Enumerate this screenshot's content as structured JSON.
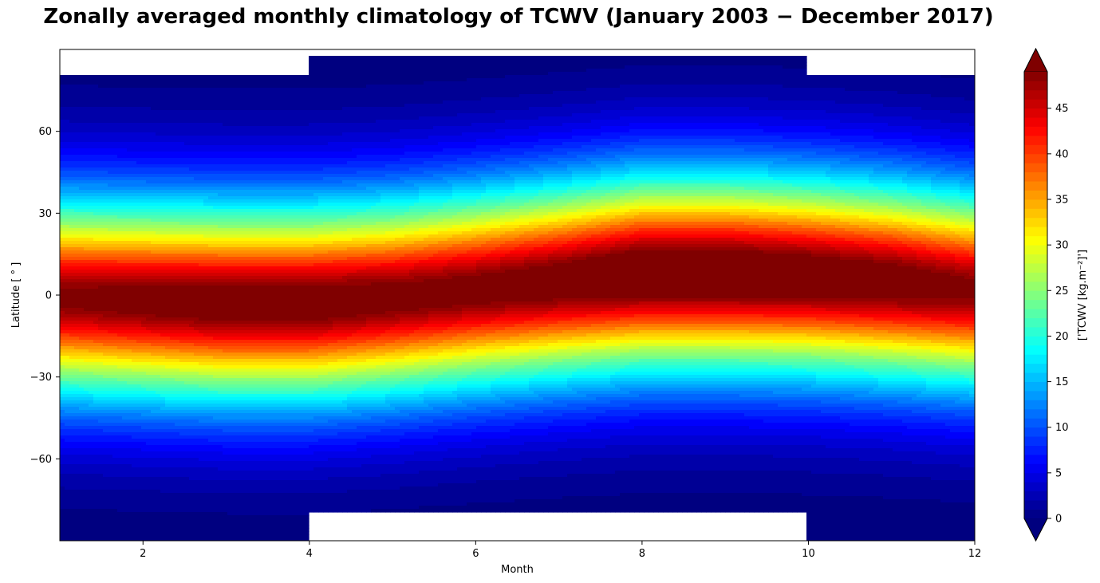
{
  "chart_data": {
    "type": "heatmap",
    "subtype": "filled-contour",
    "title": "Zonally averaged monthly climatology of TCWV (January 2003  −  December 2017)",
    "xlabel": "Month",
    "ylabel": "Latitude [ ° ]",
    "xlim": [
      1,
      12
    ],
    "ylim": [
      -90,
      90
    ],
    "xticks": [
      2,
      4,
      6,
      8,
      10,
      12
    ],
    "yticks": [
      -60,
      -30,
      0,
      30,
      60
    ],
    "ytick_labels": [
      "−60",
      "−30",
      "0",
      "30",
      "60"
    ],
    "colormap": "jet",
    "colorbar": {
      "label": "['TCWV [kg.m⁻²]']",
      "vmin": 0,
      "vmax": 49,
      "ticks": [
        0,
        5,
        10,
        15,
        20,
        25,
        30,
        35,
        40,
        45
      ],
      "extend": "both",
      "levels_step": 1
    },
    "months": [
      1,
      2,
      3,
      4,
      5,
      6,
      7,
      8,
      9,
      10,
      11,
      12
    ],
    "max_band_center_lat": [
      -1,
      -2,
      -3,
      -3,
      -1,
      2,
      5,
      8,
      8,
      7,
      5,
      2
    ],
    "peak_tcwv": [
      48,
      49,
      50,
      50,
      49,
      49,
      50,
      52,
      52,
      51,
      50,
      48
    ],
    "valid_lat_range": [
      [
        -90,
        81
      ],
      [
        -90,
        81
      ],
      [
        -90,
        81
      ],
      [
        -80,
        88
      ],
      [
        -80,
        88
      ],
      [
        -80,
        88
      ],
      [
        -80,
        88
      ],
      [
        -80,
        88
      ],
      [
        -80,
        88
      ],
      [
        -90,
        81
      ],
      [
        -90,
        81
      ],
      [
        -90,
        81
      ]
    ]
  }
}
